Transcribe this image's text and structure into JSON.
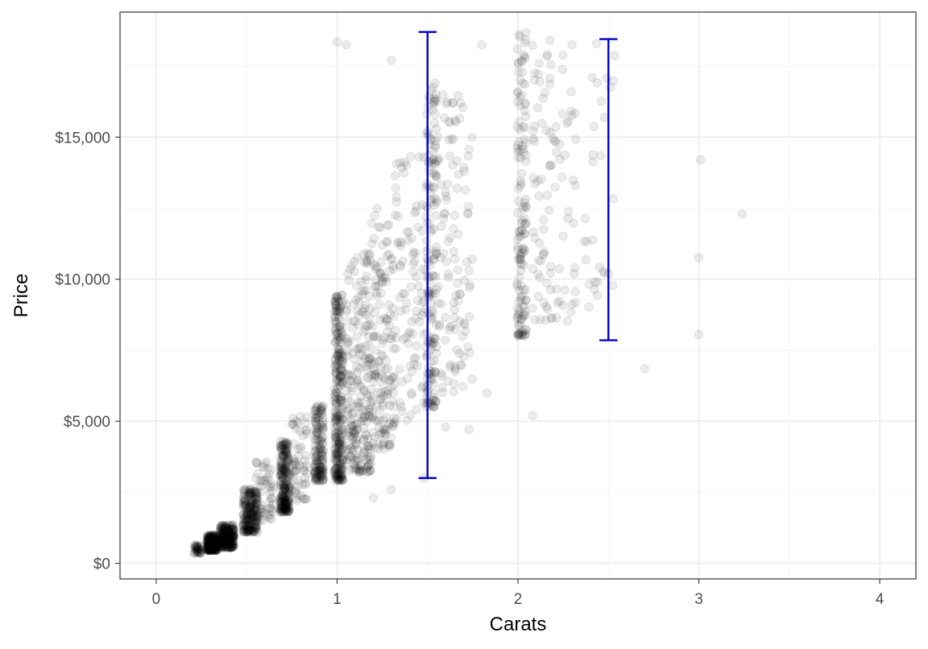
{
  "chart_data": {
    "type": "scatter",
    "title": "",
    "xlabel": "Carats",
    "ylabel": "Price",
    "xlim": [
      -0.2,
      4.2
    ],
    "ylim": [
      -550,
      19400
    ],
    "grid": true,
    "x_ticks": [
      0,
      1,
      2,
      3,
      4
    ],
    "x_tick_labels": [
      "0",
      "1",
      "2",
      "3",
      "4"
    ],
    "y_ticks": [
      0,
      5000,
      10000,
      15000
    ],
    "y_tick_labels": [
      "$0",
      "$5,000",
      "$10,000",
      "$15,000"
    ],
    "point_color": "#000000",
    "point_alpha": 0.08,
    "errorbar_color": "#0000cc",
    "errorbars": [
      {
        "x": 1.5,
        "ymin": 3000,
        "ymax": 18700
      },
      {
        "x": 2.5,
        "ymin": 7850,
        "ymax": 18450
      }
    ],
    "clusters": [
      {
        "x": 0.23,
        "xspread": 0.02,
        "ymin": 350,
        "ymax": 650,
        "n": 40
      },
      {
        "x": 0.31,
        "xspread": 0.03,
        "ymin": 450,
        "ymax": 1000,
        "n": 260
      },
      {
        "x": 0.39,
        "xspread": 0.04,
        "ymin": 550,
        "ymax": 1350,
        "n": 240
      },
      {
        "x": 0.52,
        "xspread": 0.04,
        "ymin": 1100,
        "ymax": 2600,
        "n": 220
      },
      {
        "x": 0.6,
        "xspread": 0.05,
        "ymin": 1500,
        "ymax": 3600,
        "n": 60
      },
      {
        "x": 0.71,
        "xspread": 0.025,
        "ymin": 1800,
        "ymax": 4300,
        "n": 240
      },
      {
        "x": 0.79,
        "xspread": 0.05,
        "ymin": 2200,
        "ymax": 5200,
        "n": 60
      },
      {
        "x": 0.9,
        "xspread": 0.025,
        "ymin": 2900,
        "ymax": 5600,
        "n": 150
      },
      {
        "x": 1.01,
        "xspread": 0.025,
        "ymin": 2900,
        "ymax": 9500,
        "n": 300
      },
      {
        "x": 1.12,
        "xspread": 0.07,
        "ymin": 3200,
        "ymax": 11000,
        "n": 220
      },
      {
        "x": 1.25,
        "xspread": 0.07,
        "ymin": 4000,
        "ymax": 12500,
        "n": 160
      },
      {
        "x": 1.4,
        "xspread": 0.08,
        "ymin": 5000,
        "ymax": 14500,
        "n": 90
      },
      {
        "x": 1.52,
        "xspread": 0.03,
        "ymin": 5500,
        "ymax": 17000,
        "n": 170
      },
      {
        "x": 1.65,
        "xspread": 0.1,
        "ymin": 6000,
        "ymax": 16500,
        "n": 110
      },
      {
        "x": 2.02,
        "xspread": 0.025,
        "ymin": 8000,
        "ymax": 18700,
        "n": 140
      },
      {
        "x": 2.2,
        "xspread": 0.12,
        "ymin": 8500,
        "ymax": 18600,
        "n": 100
      },
      {
        "x": 2.45,
        "xspread": 0.1,
        "ymin": 9000,
        "ymax": 18600,
        "n": 30
      }
    ],
    "points": [
      [
        1.0,
        18350
      ],
      [
        1.05,
        18250
      ],
      [
        1.3,
        17700
      ],
      [
        1.8,
        18250
      ],
      [
        2.7,
        6850
      ],
      [
        3.01,
        14200
      ],
      [
        3.0,
        10750
      ],
      [
        3.0,
        8050
      ],
      [
        3.24,
        12300
      ],
      [
        2.08,
        5200
      ],
      [
        1.83,
        6000
      ],
      [
        1.73,
        4700
      ],
      [
        1.3,
        2600
      ],
      [
        1.2,
        2300
      ],
      [
        1.48,
        3000
      ],
      [
        1.6,
        4800
      ]
    ]
  }
}
